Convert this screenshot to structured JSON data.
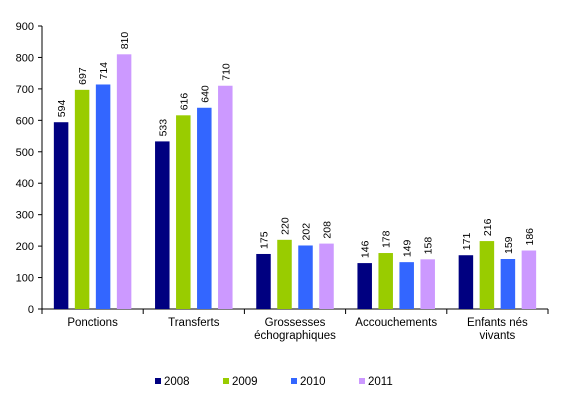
{
  "chart_data": {
    "type": "bar",
    "categories": [
      [
        "Ponctions"
      ],
      [
        "Transferts"
      ],
      [
        "Grossesses",
        "échographiques"
      ],
      [
        "Accouchements"
      ],
      [
        "Enfants nés",
        "vivants"
      ]
    ],
    "series": [
      {
        "name": "2008",
        "color": "#000080",
        "values": [
          594,
          533,
          175,
          146,
          171
        ]
      },
      {
        "name": "2009",
        "color": "#99CC00",
        "values": [
          697,
          616,
          220,
          178,
          216
        ]
      },
      {
        "name": "2010",
        "color": "#3366FF",
        "values": [
          714,
          640,
          202,
          149,
          159
        ]
      },
      {
        "name": "2011",
        "color": "#CC99FF",
        "values": [
          810,
          710,
          208,
          158,
          186
        ]
      }
    ],
    "ylim": [
      0,
      900
    ],
    "yticks": [
      0,
      100,
      200,
      300,
      400,
      500,
      600,
      700,
      800,
      900
    ],
    "grid": false,
    "legend": "bottom",
    "title": "",
    "xlabel": "",
    "ylabel": ""
  }
}
